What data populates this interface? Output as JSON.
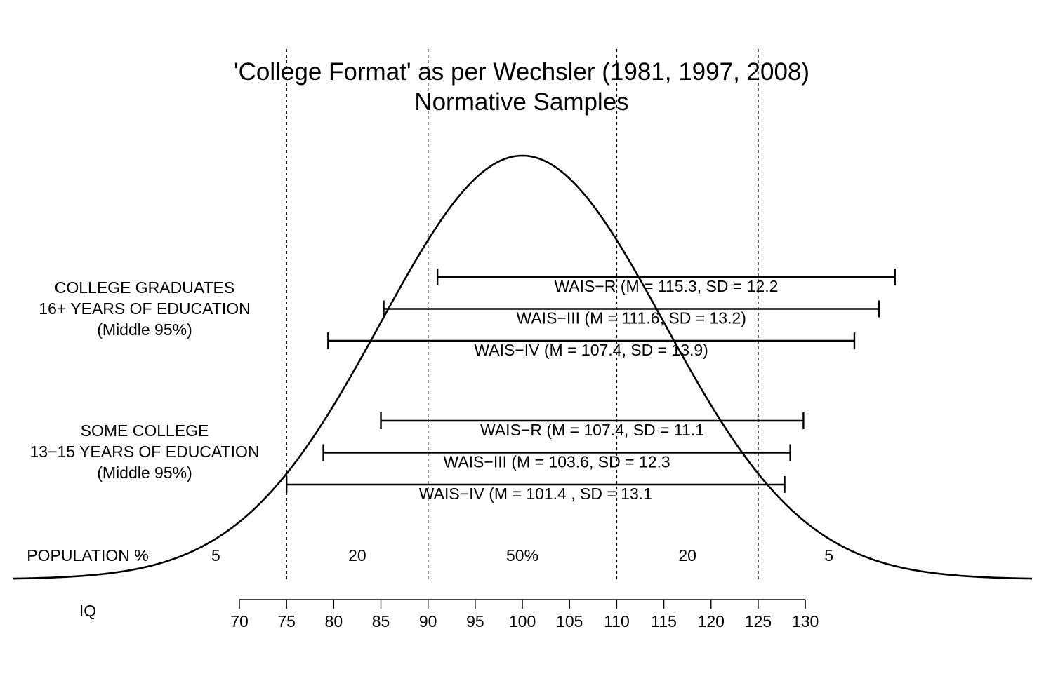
{
  "chart_data": {
    "type": "line",
    "title": "'College Format' as per Wechsler (1981, 1997, 2008)",
    "subtitle": "Normative Samples",
    "curve": {
      "mean": 100,
      "sd": 15
    },
    "x_axis": {
      "label": "IQ",
      "ticks": [
        70,
        75,
        80,
        85,
        90,
        95,
        100,
        105,
        110,
        115,
        120,
        125,
        130
      ]
    },
    "cutoffs": [
      75,
      90,
      110,
      125
    ],
    "population": {
      "label": "POPULATION %",
      "bands": [
        {
          "x": 67.5,
          "text": "5"
        },
        {
          "x": 82.5,
          "text": "20"
        },
        {
          "x": 100,
          "text": "50%"
        },
        {
          "x": 117.5,
          "text": "20"
        },
        {
          "x": 132.5,
          "text": "5"
        }
      ]
    },
    "groups": [
      {
        "label_lines": [
          "COLLEGE GRADUATES",
          "16+ YEARS OF EDUCATION",
          "(Middle 95%)"
        ],
        "intervals": [
          {
            "text": "WAIS−R (M = 115.3, SD = 12.2",
            "low": 91.0,
            "high": 139.5
          },
          {
            "text": "WAIS−III (M = 111.6, SD = 13.2)",
            "low": 85.3,
            "high": 137.8
          },
          {
            "text": "WAIS−IV (M = 107.4, SD = 13.9)",
            "low": 79.4,
            "high": 135.2
          }
        ]
      },
      {
        "label_lines": [
          "SOME COLLEGE",
          "13−15 YEARS OF EDUCATION",
          "(Middle 95%)"
        ],
        "intervals": [
          {
            "text": "WAIS−R (M = 107.4, SD = 11.1",
            "low": 85.0,
            "high": 129.8
          },
          {
            "text": "WAIS−III (M = 103.6, SD  = 12.3",
            "low": 78.9,
            "high": 128.4
          },
          {
            "text": "WAIS−IV (M = 101.4 , SD = 13.1",
            "low": 75.0,
            "high": 127.8
          }
        ]
      }
    ]
  }
}
